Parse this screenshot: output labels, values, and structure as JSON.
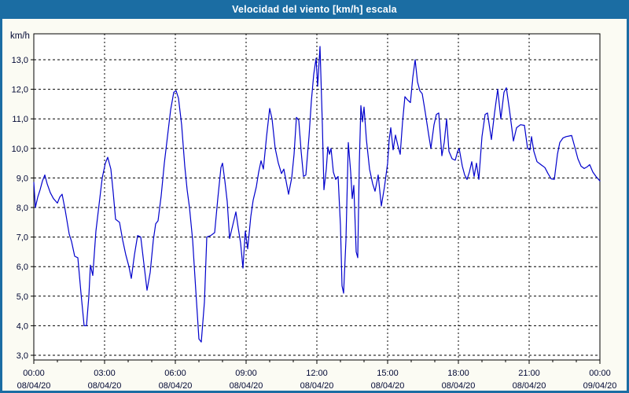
{
  "window": {
    "title": "Velocidad del viento [km/h] escala",
    "title_bar_color": "#1b6da3",
    "background_color": "#fbfbf3"
  },
  "chart_data": {
    "type": "line",
    "title": "Velocidad del viento [km/h] escala",
    "unit_label": "km/h",
    "ylabel": "km/h",
    "ylim": [
      3.0,
      13.0
    ],
    "y_tick_step": 1.0,
    "y_tick_labels": [
      "13,0",
      "12,0",
      "11,0",
      "10,0",
      "9,0",
      "8,0",
      "7,0",
      "6,0",
      "5,0",
      "4,0",
      "3,0"
    ],
    "y_tick_values": [
      13,
      12,
      11,
      10,
      9,
      8,
      7,
      6,
      5,
      4,
      3
    ],
    "x_ticks": [
      {
        "time": "00:00",
        "date": "08/04/20",
        "minutes": 0
      },
      {
        "time": "03:00",
        "date": "08/04/20",
        "minutes": 180
      },
      {
        "time": "06:00",
        "date": "08/04/20",
        "minutes": 360
      },
      {
        "time": "09:00",
        "date": "08/04/20",
        "minutes": 540
      },
      {
        "time": "12:00",
        "date": "08/04/20",
        "minutes": 720
      },
      {
        "time": "15:00",
        "date": "08/04/20",
        "minutes": 900
      },
      {
        "time": "18:00",
        "date": "08/04/20",
        "minutes": 1080
      },
      {
        "time": "21:00",
        "date": "08/04/20",
        "minutes": 1260
      },
      {
        "time": "00:00",
        "date": "09/04/20",
        "minutes": 1440
      }
    ],
    "x_total_minutes": 1440,
    "grid": true,
    "legend": "none",
    "line_color": "#0000cc",
    "axis_color": "#000000",
    "label_color": "#000733",
    "points": [
      [
        0,
        8.85
      ],
      [
        4,
        8.0
      ],
      [
        10,
        8.35
      ],
      [
        16,
        8.6
      ],
      [
        22,
        8.9
      ],
      [
        28,
        9.1
      ],
      [
        34,
        8.8
      ],
      [
        42,
        8.5
      ],
      [
        50,
        8.3
      ],
      [
        60,
        8.15
      ],
      [
        66,
        8.35
      ],
      [
        72,
        8.45
      ],
      [
        80,
        7.9
      ],
      [
        90,
        7.1
      ],
      [
        96,
        6.85
      ],
      [
        104,
        6.35
      ],
      [
        112,
        6.3
      ],
      [
        120,
        5.1
      ],
      [
        128,
        4.0
      ],
      [
        134,
        4.0
      ],
      [
        140,
        5.0
      ],
      [
        144,
        6.05
      ],
      [
        150,
        5.7
      ],
      [
        158,
        7.2
      ],
      [
        166,
        8.1
      ],
      [
        174,
        9.0
      ],
      [
        182,
        9.5
      ],
      [
        188,
        9.7
      ],
      [
        196,
        9.3
      ],
      [
        202,
        8.5
      ],
      [
        208,
        7.6
      ],
      [
        218,
        7.5
      ],
      [
        226,
        6.9
      ],
      [
        234,
        6.4
      ],
      [
        242,
        6.0
      ],
      [
        248,
        5.6
      ],
      [
        256,
        6.4
      ],
      [
        264,
        7.05
      ],
      [
        272,
        7.0
      ],
      [
        280,
        6.1
      ],
      [
        288,
        5.2
      ],
      [
        296,
        5.8
      ],
      [
        304,
        6.9
      ],
      [
        310,
        7.45
      ],
      [
        316,
        7.55
      ],
      [
        324,
        8.4
      ],
      [
        332,
        9.5
      ],
      [
        340,
        10.4
      ],
      [
        348,
        11.3
      ],
      [
        356,
        11.9
      ],
      [
        362,
        11.95
      ],
      [
        368,
        11.7
      ],
      [
        376,
        10.8
      ],
      [
        384,
        9.4
      ],
      [
        390,
        8.6
      ],
      [
        396,
        8.0
      ],
      [
        404,
        6.9
      ],
      [
        412,
        5.2
      ],
      [
        420,
        3.55
      ],
      [
        426,
        3.45
      ],
      [
        434,
        4.8
      ],
      [
        440,
        7.0
      ],
      [
        450,
        7.05
      ],
      [
        460,
        7.15
      ],
      [
        468,
        8.3
      ],
      [
        476,
        9.35
      ],
      [
        480,
        9.5
      ],
      [
        486,
        8.9
      ],
      [
        492,
        8.2
      ],
      [
        498,
        6.95
      ],
      [
        506,
        7.4
      ],
      [
        514,
        7.85
      ],
      [
        520,
        7.3
      ],
      [
        526,
        6.8
      ],
      [
        532,
        5.95
      ],
      [
        538,
        7.2
      ],
      [
        544,
        6.6
      ],
      [
        552,
        7.7
      ],
      [
        558,
        8.25
      ],
      [
        566,
        8.7
      ],
      [
        572,
        9.2
      ],
      [
        578,
        9.58
      ],
      [
        584,
        9.3
      ],
      [
        592,
        10.4
      ],
      [
        600,
        11.35
      ],
      [
        606,
        11.0
      ],
      [
        614,
        10.0
      ],
      [
        622,
        9.5
      ],
      [
        630,
        9.15
      ],
      [
        636,
        9.3
      ],
      [
        648,
        8.45
      ],
      [
        656,
        9.0
      ],
      [
        662,
        9.8
      ],
      [
        668,
        11.05
      ],
      [
        674,
        10.95
      ],
      [
        680,
        9.9
      ],
      [
        686,
        9.05
      ],
      [
        692,
        9.1
      ],
      [
        700,
        10.4
      ],
      [
        706,
        11.6
      ],
      [
        712,
        12.5
      ],
      [
        718,
        13.05
      ],
      [
        722,
        12.1
      ],
      [
        728,
        13.45
      ],
      [
        734,
        10.8
      ],
      [
        738,
        8.6
      ],
      [
        744,
        9.3
      ],
      [
        748,
        10.05
      ],
      [
        752,
        9.8
      ],
      [
        756,
        10.0
      ],
      [
        762,
        9.2
      ],
      [
        768,
        8.95
      ],
      [
        774,
        9.05
      ],
      [
        780,
        7.4
      ],
      [
        784,
        5.35
      ],
      [
        788,
        5.1
      ],
      [
        794,
        6.9
      ],
      [
        800,
        10.2
      ],
      [
        806,
        9.2
      ],
      [
        810,
        8.3
      ],
      [
        814,
        8.75
      ],
      [
        820,
        6.5
      ],
      [
        824,
        6.3
      ],
      [
        828,
        9.5
      ],
      [
        832,
        11.45
      ],
      [
        836,
        10.9
      ],
      [
        840,
        11.4
      ],
      [
        846,
        10.3
      ],
      [
        854,
        9.3
      ],
      [
        862,
        8.8
      ],
      [
        868,
        8.55
      ],
      [
        876,
        9.1
      ],
      [
        884,
        8.05
      ],
      [
        892,
        8.7
      ],
      [
        900,
        9.5
      ],
      [
        904,
        10.3
      ],
      [
        908,
        10.7
      ],
      [
        914,
        9.95
      ],
      [
        920,
        10.45
      ],
      [
        926,
        10.1
      ],
      [
        932,
        9.8
      ],
      [
        938,
        10.9
      ],
      [
        944,
        11.75
      ],
      [
        950,
        11.65
      ],
      [
        958,
        11.55
      ],
      [
        964,
        12.4
      ],
      [
        970,
        13.0
      ],
      [
        976,
        12.25
      ],
      [
        982,
        11.95
      ],
      [
        988,
        11.85
      ],
      [
        996,
        11.2
      ],
      [
        1004,
        10.5
      ],
      [
        1010,
        10.0
      ],
      [
        1018,
        10.8
      ],
      [
        1024,
        11.15
      ],
      [
        1030,
        11.2
      ],
      [
        1038,
        9.75
      ],
      [
        1044,
        10.2
      ],
      [
        1050,
        11.0
      ],
      [
        1056,
        9.9
      ],
      [
        1064,
        9.65
      ],
      [
        1072,
        9.6
      ],
      [
        1078,
        9.9
      ],
      [
        1082,
        10.0
      ],
      [
        1090,
        9.4
      ],
      [
        1096,
        9.1
      ],
      [
        1102,
        8.95
      ],
      [
        1108,
        9.2
      ],
      [
        1114,
        9.55
      ],
      [
        1120,
        9.05
      ],
      [
        1126,
        9.5
      ],
      [
        1132,
        8.95
      ],
      [
        1140,
        10.4
      ],
      [
        1148,
        11.15
      ],
      [
        1154,
        11.2
      ],
      [
        1164,
        10.3
      ],
      [
        1172,
        11.2
      ],
      [
        1180,
        12.0
      ],
      [
        1188,
        11.0
      ],
      [
        1196,
        11.9
      ],
      [
        1202,
        12.05
      ],
      [
        1210,
        11.3
      ],
      [
        1220,
        10.25
      ],
      [
        1228,
        10.7
      ],
      [
        1238,
        10.8
      ],
      [
        1248,
        10.78
      ],
      [
        1256,
        10.0
      ],
      [
        1262,
        9.95
      ],
      [
        1266,
        10.4
      ],
      [
        1272,
        9.9
      ],
      [
        1280,
        9.55
      ],
      [
        1290,
        9.45
      ],
      [
        1300,
        9.35
      ],
      [
        1308,
        9.15
      ],
      [
        1316,
        8.97
      ],
      [
        1324,
        8.95
      ],
      [
        1332,
        9.8
      ],
      [
        1338,
        10.2
      ],
      [
        1346,
        10.35
      ],
      [
        1354,
        10.4
      ],
      [
        1362,
        10.42
      ],
      [
        1368,
        10.44
      ],
      [
        1376,
        10.05
      ],
      [
        1384,
        9.65
      ],
      [
        1392,
        9.4
      ],
      [
        1400,
        9.32
      ],
      [
        1408,
        9.38
      ],
      [
        1414,
        9.45
      ],
      [
        1422,
        9.2
      ],
      [
        1430,
        9.05
      ],
      [
        1440,
        8.9
      ]
    ]
  }
}
